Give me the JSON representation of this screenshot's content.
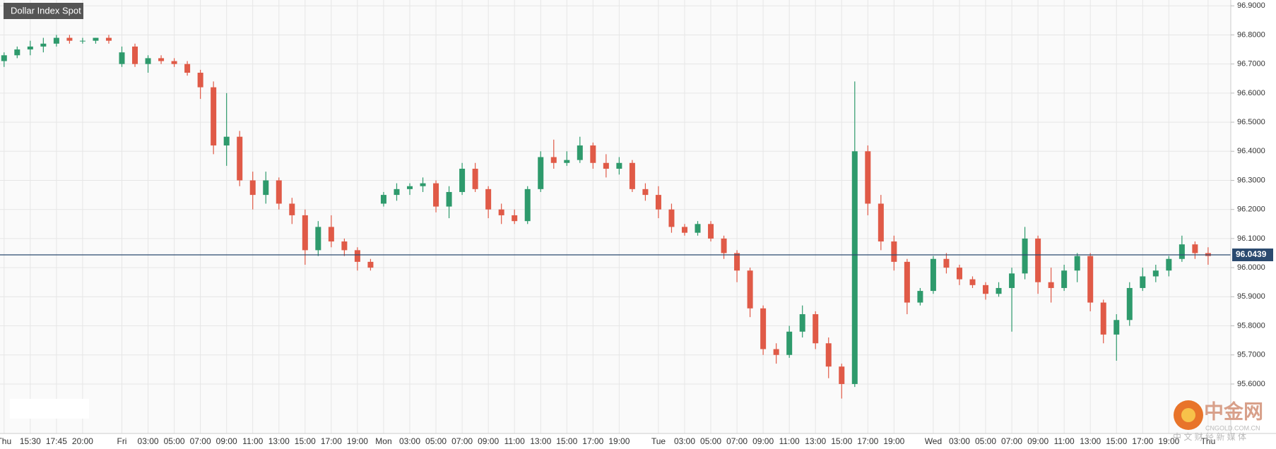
{
  "chart_data": {
    "type": "candlestick",
    "title": "Dollar Index Spot",
    "up_color": "#2e9a6c",
    "down_color": "#e05a47",
    "last_price": 96.0439,
    "grid": true,
    "ylim": [
      95.43,
      96.92
    ],
    "yticks": [
      {
        "value": 95.6,
        "label": "95.6000"
      },
      {
        "value": 95.7,
        "label": "95.7000"
      },
      {
        "value": 95.8,
        "label": "95.8000"
      },
      {
        "value": 95.9,
        "label": "95.9000"
      },
      {
        "value": 96.0,
        "label": "96.0000"
      },
      {
        "value": 96.1,
        "label": "96.1000"
      },
      {
        "value": 96.2,
        "label": "96.2000"
      },
      {
        "value": 96.3,
        "label": "96.3000"
      },
      {
        "value": 96.4,
        "label": "96.4000"
      },
      {
        "value": 96.5,
        "label": "96.5000"
      },
      {
        "value": 96.6,
        "label": "96.6000"
      },
      {
        "value": 96.7,
        "label": "96.7000"
      },
      {
        "value": 96.8,
        "label": "96.8000"
      },
      {
        "value": 96.9,
        "label": "96.9000"
      }
    ],
    "categories": [
      "Thu",
      null,
      "15:30",
      null,
      "17:45",
      null,
      "20:00",
      null,
      null,
      "Fri",
      null,
      "03:00",
      null,
      "05:00",
      null,
      "07:00",
      null,
      "09:00",
      null,
      "11:00",
      null,
      "13:00",
      null,
      "15:00",
      null,
      "17:00",
      null,
      "19:00",
      null,
      "Mon",
      null,
      "03:00",
      null,
      "05:00",
      null,
      "07:00",
      null,
      "09:00",
      null,
      "11:00",
      null,
      "13:00",
      null,
      "15:00",
      null,
      "17:00",
      null,
      "19:00",
      null,
      null,
      "Tue",
      null,
      "03:00",
      null,
      "05:00",
      null,
      "07:00",
      null,
      "09:00",
      null,
      "11:00",
      null,
      "13:00",
      null,
      "15:00",
      null,
      "17:00",
      null,
      "19:00",
      null,
      null,
      "Wed",
      null,
      "03:00",
      null,
      "05:00",
      null,
      "07:00",
      null,
      "09:00",
      null,
      "11:00",
      null,
      "13:00",
      null,
      "15:00",
      null,
      "17:00",
      null,
      "19:00",
      null,
      null,
      "Thu"
    ],
    "open": [
      96.71,
      96.73,
      96.75,
      96.76,
      96.77,
      96.79,
      96.78,
      96.78,
      96.79,
      96.7,
      96.76,
      96.7,
      96.72,
      96.71,
      96.7,
      96.67,
      96.62,
      96.42,
      96.45,
      96.3,
      96.25,
      96.3,
      96.22,
      96.18,
      96.06,
      96.14,
      96.09,
      96.06,
      96.02,
      96.22,
      96.25,
      96.27,
      96.28,
      96.29,
      96.21,
      96.26,
      96.34,
      96.27,
      96.2,
      96.18,
      96.16,
      96.27,
      96.38,
      96.36,
      96.37,
      96.42,
      96.36,
      96.34,
      96.36,
      96.27,
      96.25,
      96.2,
      96.14,
      96.12,
      96.15,
      96.1,
      96.05,
      95.99,
      95.86,
      95.72,
      95.7,
      95.78,
      95.84,
      95.74,
      95.66,
      95.6,
      96.4,
      96.22,
      96.09,
      96.02,
      95.88,
      95.92,
      96.03,
      96.0,
      95.96,
      95.94,
      95.91,
      95.93,
      95.98,
      96.1,
      95.95,
      95.93,
      95.99,
      96.04,
      95.88,
      95.77,
      95.82,
      95.93,
      95.97,
      95.99,
      96.03,
      96.08,
      96.05
    ],
    "high": [
      96.74,
      96.76,
      96.78,
      96.79,
      96.8,
      96.8,
      96.79,
      96.79,
      96.8,
      96.76,
      96.77,
      96.73,
      96.73,
      96.72,
      96.71,
      96.68,
      96.64,
      96.6,
      96.47,
      96.33,
      96.33,
      96.31,
      96.24,
      96.2,
      96.16,
      96.18,
      96.1,
      96.07,
      96.03,
      96.26,
      96.29,
      96.29,
      96.31,
      96.3,
      96.28,
      96.36,
      96.36,
      96.28,
      96.22,
      96.2,
      96.28,
      96.4,
      96.44,
      96.4,
      96.45,
      96.43,
      96.39,
      96.38,
      96.37,
      96.29,
      96.28,
      96.22,
      96.15,
      96.16,
      96.16,
      96.11,
      96.06,
      96.0,
      95.87,
      95.74,
      95.8,
      95.87,
      95.85,
      95.76,
      95.67,
      96.64,
      96.42,
      96.25,
      96.11,
      96.03,
      95.93,
      96.04,
      96.05,
      96.01,
      95.97,
      95.95,
      95.95,
      96.0,
      96.14,
      96.11,
      96.0,
      96.01,
      96.05,
      96.05,
      95.89,
      95.84,
      95.95,
      96.0,
      96.01,
      96.04,
      96.11,
      96.09,
      96.07
    ],
    "low": [
      96.69,
      96.72,
      96.73,
      96.74,
      96.76,
      96.77,
      96.77,
      96.77,
      96.77,
      96.69,
      96.69,
      96.67,
      96.7,
      96.69,
      96.66,
      96.58,
      96.39,
      96.35,
      96.28,
      96.2,
      96.22,
      96.2,
      96.15,
      96.01,
      96.04,
      96.07,
      96.04,
      95.99,
      95.99,
      96.21,
      96.23,
      96.25,
      96.26,
      96.19,
      96.17,
      96.25,
      96.26,
      96.17,
      96.15,
      96.15,
      96.15,
      96.26,
      96.34,
      96.35,
      96.36,
      96.34,
      96.31,
      96.32,
      96.26,
      96.23,
      96.17,
      96.12,
      96.11,
      96.11,
      96.09,
      96.03,
      95.95,
      95.83,
      95.7,
      95.67,
      95.69,
      95.76,
      95.72,
      95.62,
      95.55,
      95.59,
      96.18,
      96.06,
      95.99,
      95.84,
      95.87,
      95.91,
      95.98,
      95.94,
      95.93,
      95.89,
      95.9,
      95.78,
      95.96,
      95.91,
      95.88,
      95.92,
      95.95,
      95.85,
      95.74,
      95.68,
      95.8,
      95.92,
      95.95,
      95.97,
      96.02,
      96.03,
      96.01
    ],
    "close": [
      96.73,
      96.75,
      96.76,
      96.77,
      96.79,
      96.78,
      96.78,
      96.79,
      96.78,
      96.74,
      96.7,
      96.72,
      96.71,
      96.7,
      96.67,
      96.62,
      96.42,
      96.45,
      96.3,
      96.25,
      96.3,
      96.22,
      96.18,
      96.06,
      96.14,
      96.09,
      96.06,
      96.02,
      96.0,
      96.25,
      96.27,
      96.28,
      96.29,
      96.21,
      96.26,
      96.34,
      96.27,
      96.2,
      96.18,
      96.16,
      96.27,
      96.38,
      96.36,
      96.37,
      96.42,
      96.36,
      96.34,
      96.36,
      96.27,
      96.25,
      96.2,
      96.14,
      96.12,
      96.15,
      96.1,
      96.05,
      95.99,
      95.86,
      95.72,
      95.7,
      95.78,
      95.84,
      95.74,
      95.66,
      95.6,
      96.4,
      96.22,
      96.09,
      96.02,
      95.88,
      95.92,
      96.03,
      96.0,
      95.96,
      95.94,
      95.91,
      95.93,
      95.98,
      96.1,
      95.95,
      95.93,
      95.99,
      96.04,
      95.88,
      95.77,
      95.82,
      95.93,
      95.97,
      95.99,
      96.03,
      96.08,
      96.05,
      96.04
    ]
  },
  "watermark": {
    "logo": "中金网",
    "url": "CNGOLD.COM.CN",
    "tagline": "中 文 财 经 新 媒 体"
  }
}
